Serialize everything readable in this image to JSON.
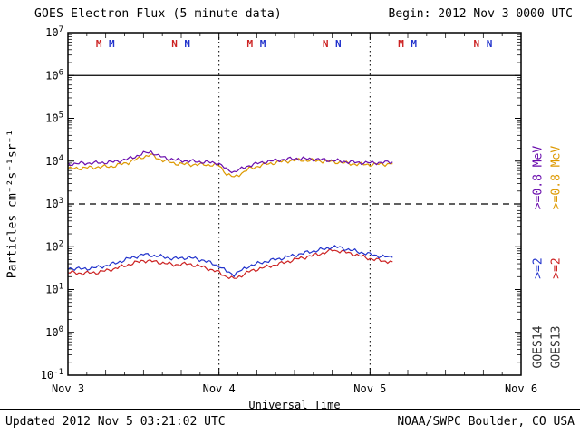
{
  "header": {
    "title": "GOES Electron Flux (5 minute data)",
    "begin": "Begin: 2012 Nov 3 0000 UTC"
  },
  "axes": {
    "x_label": "Universal Time",
    "y_label": "Particles cm⁻²s⁻¹sr⁻¹"
  },
  "right_labels": [
    {
      "text": ">=0.8 MeV",
      "color": "#6a0dad"
    },
    {
      "text": ">=0.8 MeV",
      "color": "#dd9900"
    },
    {
      "text": ">=2",
      "color": "#2233cc"
    },
    {
      "text": ">=2",
      "color": "#cc2222"
    },
    {
      "text": "GOES14",
      "color": "#303030"
    },
    {
      "text": "GOES13",
      "color": "#303030"
    }
  ],
  "footer": {
    "updated": "Updated 2012 Nov  5 03:21:02 UTC",
    "source": "NOAA/SWPC Boulder, CO USA"
  },
  "chart_data": {
    "type": "line",
    "title": "GOES Electron Flux (5 minute data)",
    "xlabel": "Universal Time",
    "ylabel": "Particles cm⁻²s⁻¹sr⁻¹",
    "x_axis_days": [
      "Nov 3",
      "Nov 4",
      "Nov 5",
      "Nov 6"
    ],
    "xticks": [
      {
        "t": 0,
        "label": "Nov 3"
      },
      {
        "t": 1,
        "label": "Nov 4"
      },
      {
        "t": 2,
        "label": "Nov 5"
      },
      {
        "t": 3,
        "label": "Nov 6"
      }
    ],
    "y_log_range": [
      -1,
      7
    ],
    "y_tick_exponents": [
      7,
      6,
      5,
      4,
      3,
      2,
      1,
      0,
      -1
    ],
    "y_scale": "log10",
    "grid": "day-boundaries-dotted",
    "day_boundary_lines_t": [
      1,
      2
    ],
    "thresholds": [
      {
        "log10": 6,
        "style": "solid"
      },
      {
        "log10": 3,
        "style": "dashed"
      }
    ],
    "markers": [
      {
        "t": 0.205,
        "label": "M",
        "sat": "GOES13",
        "color": "#cc2222"
      },
      {
        "t": 0.29,
        "label": "M",
        "sat": "GOES14",
        "color": "#2233cc"
      },
      {
        "t": 0.705,
        "label": "N",
        "sat": "GOES13",
        "color": "#cc2222"
      },
      {
        "t": 0.79,
        "label": "N",
        "sat": "GOES14",
        "color": "#2233cc"
      },
      {
        "t": 1.205,
        "label": "M",
        "sat": "GOES13",
        "color": "#cc2222"
      },
      {
        "t": 1.29,
        "label": "M",
        "sat": "GOES14",
        "color": "#2233cc"
      },
      {
        "t": 1.705,
        "label": "N",
        "sat": "GOES13",
        "color": "#cc2222"
      },
      {
        "t": 1.79,
        "label": "N",
        "sat": "GOES14",
        "color": "#2233cc"
      },
      {
        "t": 2.205,
        "label": "M",
        "sat": "GOES13",
        "color": "#cc2222"
      },
      {
        "t": 2.29,
        "label": "M",
        "sat": "GOES14",
        "color": "#2233cc"
      },
      {
        "t": 2.705,
        "label": "N",
        "sat": "GOES13",
        "color": "#cc2222"
      },
      {
        "t": 2.79,
        "label": "N",
        "sat": "GOES14",
        "color": "#2233cc"
      }
    ],
    "series": [
      {
        "id": "goes13-ge0.8MeV",
        "name": "GOES13 >=0.8 MeV",
        "color": "#dd9900",
        "t_days": [
          0.0,
          0.1,
          0.2,
          0.3,
          0.4,
          0.5,
          0.55,
          0.6,
          0.7,
          0.8,
          0.9,
          1.0,
          1.05,
          1.1,
          1.15,
          1.2,
          1.3,
          1.4,
          1.5,
          1.6,
          1.7,
          1.8,
          1.9,
          2.0,
          2.1,
          2.15
        ],
        "log10_flux": [
          3.82,
          3.84,
          3.86,
          3.88,
          3.97,
          4.1,
          4.15,
          4.05,
          3.95,
          3.92,
          3.92,
          3.9,
          3.7,
          3.62,
          3.72,
          3.82,
          3.92,
          3.98,
          4.02,
          4.02,
          4.0,
          3.97,
          3.93,
          3.92,
          3.93,
          3.94
        ]
      },
      {
        "id": "goes14-ge0.8MeV",
        "name": "GOES14 >=0.8 MeV",
        "color": "#6a0dad",
        "t_days": [
          0.0,
          0.1,
          0.2,
          0.3,
          0.4,
          0.5,
          0.55,
          0.6,
          0.7,
          0.8,
          0.9,
          1.0,
          1.05,
          1.1,
          1.15,
          1.2,
          1.3,
          1.4,
          1.5,
          1.6,
          1.7,
          1.8,
          1.9,
          2.0,
          2.1,
          2.15
        ],
        "log10_flux": [
          3.93,
          3.95,
          3.96,
          3.98,
          4.05,
          4.18,
          4.22,
          4.12,
          4.03,
          4.0,
          3.98,
          3.95,
          3.8,
          3.75,
          3.82,
          3.9,
          3.98,
          4.03,
          4.06,
          4.05,
          4.03,
          4.0,
          3.97,
          3.96,
          3.97,
          3.98
        ]
      },
      {
        "id": "goes13-ge2MeV",
        "name": "GOES13 >=2 MeV",
        "color": "#cc2222",
        "t_days": [
          0.0,
          0.1,
          0.2,
          0.3,
          0.4,
          0.5,
          0.6,
          0.7,
          0.8,
          0.9,
          1.0,
          1.05,
          1.1,
          1.15,
          1.2,
          1.3,
          1.4,
          1.5,
          1.6,
          1.7,
          1.75,
          1.8,
          1.9,
          2.0,
          2.1,
          2.15
        ],
        "log10_flux": [
          1.4,
          1.38,
          1.4,
          1.48,
          1.58,
          1.68,
          1.64,
          1.58,
          1.6,
          1.52,
          1.4,
          1.3,
          1.25,
          1.33,
          1.42,
          1.52,
          1.6,
          1.7,
          1.78,
          1.86,
          1.92,
          1.9,
          1.82,
          1.72,
          1.66,
          1.65
        ]
      },
      {
        "id": "goes14-ge2MeV",
        "name": "GOES14 >=2 MeV",
        "color": "#2233cc",
        "t_days": [
          0.0,
          0.1,
          0.2,
          0.3,
          0.4,
          0.5,
          0.6,
          0.7,
          0.8,
          0.9,
          1.0,
          1.05,
          1.1,
          1.15,
          1.2,
          1.3,
          1.4,
          1.5,
          1.6,
          1.7,
          1.75,
          1.8,
          1.9,
          2.0,
          2.1,
          2.15
        ],
        "log10_flux": [
          1.5,
          1.48,
          1.52,
          1.6,
          1.72,
          1.82,
          1.78,
          1.72,
          1.75,
          1.68,
          1.55,
          1.42,
          1.35,
          1.45,
          1.55,
          1.65,
          1.72,
          1.8,
          1.88,
          1.95,
          2.0,
          1.98,
          1.9,
          1.82,
          1.76,
          1.75
        ]
      }
    ]
  }
}
